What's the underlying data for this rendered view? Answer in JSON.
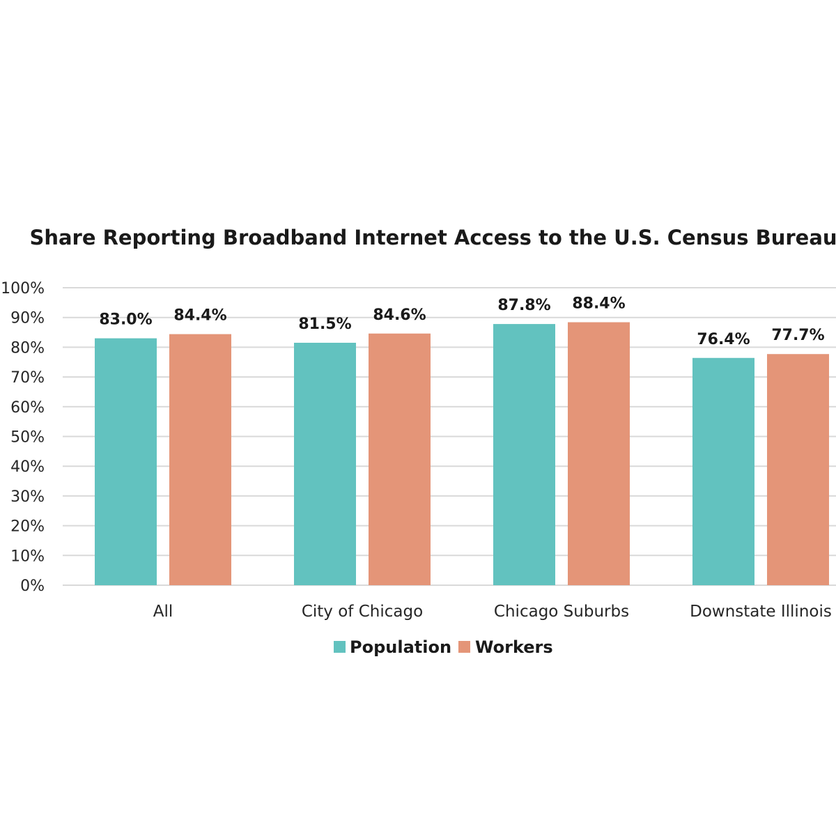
{
  "chart_data": {
    "type": "bar",
    "title": "Share Reporting Broadband Internet Access to the U.S. Census Bureau",
    "xlabel": "",
    "ylabel": "",
    "categories": [
      "All",
      "City of Chicago",
      "Chicago Suburbs",
      "Downstate Illinois"
    ],
    "series": [
      {
        "name": "Population",
        "color": "#62c2bf",
        "values": [
          83.0,
          81.5,
          87.8,
          76.4
        ],
        "labels": [
          "83.0%",
          "81.5%",
          "87.8%",
          "76.4%"
        ]
      },
      {
        "name": "Workers",
        "color": "#e49578",
        "values": [
          84.4,
          84.6,
          88.4,
          77.7
        ],
        "labels": [
          "84.4%",
          "84.6%",
          "88.4%",
          "77.7%"
        ]
      }
    ],
    "ylim": [
      0,
      100
    ],
    "yticks": [
      0,
      10,
      20,
      30,
      40,
      50,
      60,
      70,
      80,
      90,
      100
    ],
    "ytick_labels": [
      "0%",
      "10%",
      "20%",
      "30%",
      "40%",
      "50%",
      "60%",
      "70%",
      "80%",
      "90%",
      "100%"
    ],
    "grid": true,
    "legend_position": "bottom"
  }
}
